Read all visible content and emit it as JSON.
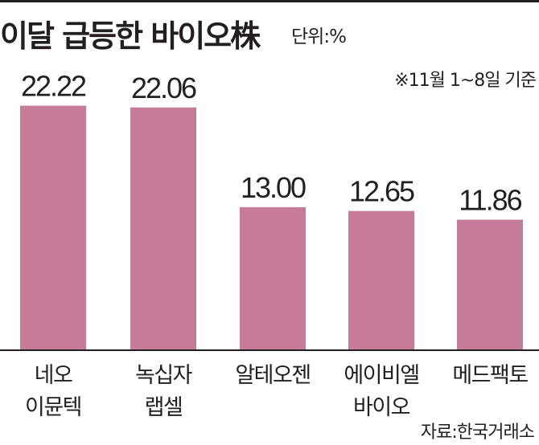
{
  "header": {
    "title": "이달 급등한 바이오株",
    "unit": "단위:%"
  },
  "note": {
    "period": "※11월 1~8일 기준",
    "source": "자료:한국거래소"
  },
  "colors": {
    "bar": "#c67b99",
    "text": "#231f20"
  },
  "chart_data": {
    "type": "bar",
    "categories": [
      [
        "네오",
        "이뮨텍"
      ],
      [
        "녹십자",
        "랩셀"
      ],
      [
        "알테오젠"
      ],
      [
        "에이비엘",
        "바이오"
      ],
      [
        "메드팩토"
      ]
    ],
    "values": [
      22.22,
      22.06,
      13.0,
      12.65,
      11.86
    ],
    "data_labels": [
      "22.22",
      "22.06",
      "13.00",
      "12.65",
      "11.86"
    ],
    "ylim": [
      0,
      24
    ],
    "grid": false,
    "legend": "none"
  }
}
